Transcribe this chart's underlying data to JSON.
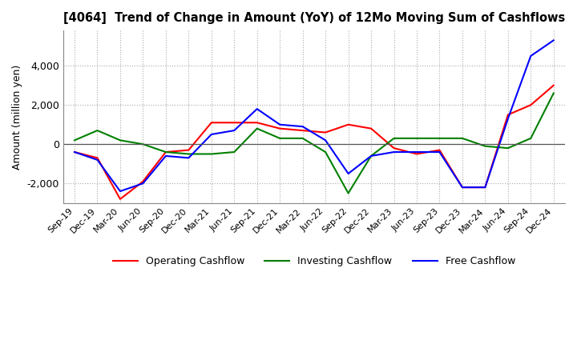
{
  "title": "[4064]  Trend of Change in Amount (YoY) of 12Mo Moving Sum of Cashflows",
  "ylabel": "Amount (million yen)",
  "x_labels": [
    "Sep-19",
    "Dec-19",
    "Mar-20",
    "Jun-20",
    "Sep-20",
    "Dec-20",
    "Mar-21",
    "Jun-21",
    "Sep-21",
    "Dec-21",
    "Mar-22",
    "Jun-22",
    "Sep-22",
    "Dec-22",
    "Mar-23",
    "Jun-23",
    "Sep-23",
    "Dec-23",
    "Mar-24",
    "Jun-24",
    "Sep-24",
    "Dec-24"
  ],
  "operating": [
    -400,
    -700,
    -2800,
    -1900,
    -400,
    -300,
    1100,
    1100,
    1100,
    800,
    700,
    600,
    1000,
    800,
    -200,
    -500,
    -300,
    -2200,
    -2200,
    1500,
    2000,
    3000
  ],
  "investing": [
    200,
    700,
    200,
    0,
    -400,
    -500,
    -500,
    -400,
    800,
    300,
    300,
    -400,
    -2500,
    -600,
    300,
    300,
    300,
    300,
    -100,
    -200,
    300,
    2600
  ],
  "free": [
    -400,
    -800,
    -2400,
    -2000,
    -600,
    -700,
    500,
    700,
    1800,
    1000,
    900,
    200,
    -1500,
    -600,
    -400,
    -400,
    -400,
    -2200,
    -2200,
    1300,
    4500,
    5300
  ],
  "ylim": [
    -3000,
    5800
  ],
  "yticks": [
    -2000,
    0,
    2000,
    4000
  ],
  "operating_color": "#ff0000",
  "investing_color": "#008000",
  "free_color": "#0000ff",
  "background_color": "#ffffff",
  "grid_color": "#aaaaaa"
}
